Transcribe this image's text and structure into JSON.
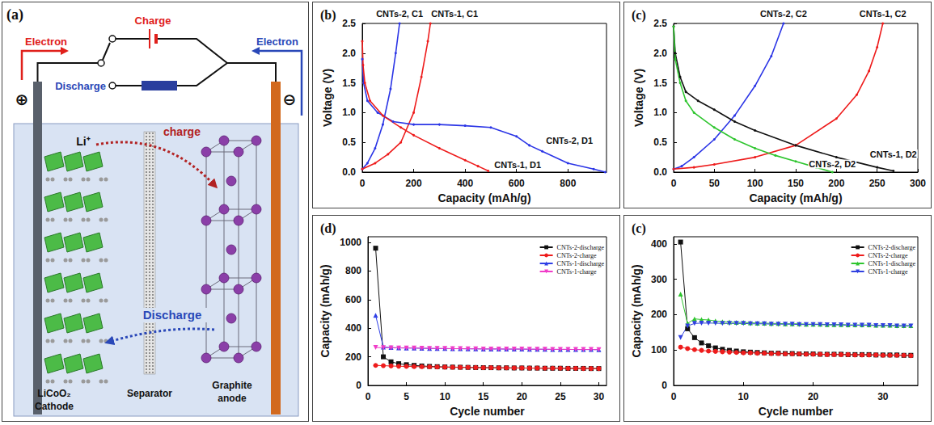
{
  "diagram": {
    "panel": "(a)",
    "electron_charge": "Electron",
    "electron_discharge": "Electron",
    "charge_branch": "Charge",
    "discharge_branch": "Discharge",
    "positive": "⊕",
    "negative": "⊖",
    "ion": "Li⁺",
    "charge_arrow": "charge",
    "discharge_arrow": "Discharge",
    "cathode": [
      "LiCoO₂",
      "Cathode"
    ],
    "separator": "Separator",
    "anode": [
      "Graphite",
      "anode"
    ]
  },
  "chart_data": [
    {
      "type": "line",
      "panel": "(b)",
      "xlabel": "Capacity (mAh/g)",
      "ylabel": "Voltage (V)",
      "xlim": [
        0,
        950
      ],
      "xticks": [
        0,
        200,
        400,
        600,
        800
      ],
      "ylim": [
        0,
        2.5
      ],
      "yticks": [
        {
          "value": 0,
          "label": "0.0"
        },
        0.5,
        {
          "value": 1,
          "label": "1.0"
        },
        1.5,
        {
          "value": 2,
          "label": "2.0"
        },
        2.5
      ],
      "grid": false,
      "marker": "circle",
      "line_style": "solid",
      "series": [
        {
          "name": "CNTs-2, C1",
          "color": "#2b35e6",
          "x": [
            0,
            20,
            50,
            80,
            110,
            130,
            145
          ],
          "values": [
            0.05,
            0.15,
            0.4,
            0.8,
            1.4,
            2.0,
            2.5
          ]
        },
        {
          "name": "CNTs-1, C1",
          "color": "#ee1c1c",
          "x": [
            0,
            50,
            100,
            150,
            200,
            230,
            255,
            265
          ],
          "values": [
            0.05,
            0.15,
            0.3,
            0.5,
            1.0,
            1.6,
            2.2,
            2.5
          ]
        },
        {
          "name": "CNTs-2, D1",
          "color": "#2b35e6",
          "x": [
            0,
            5,
            20,
            60,
            120,
            200,
            300,
            400,
            500,
            600,
            650,
            700,
            800,
            900,
            945
          ],
          "values": [
            1.9,
            1.5,
            1.2,
            1.0,
            0.85,
            0.8,
            0.8,
            0.78,
            0.75,
            0.6,
            0.45,
            0.35,
            0.15,
            0.05,
            0.0
          ]
        },
        {
          "name": "CNTs-1, D1",
          "color": "#ee1c1c",
          "x": [
            0,
            3,
            10,
            30,
            80,
            150,
            200,
            300,
            400,
            450,
            490
          ],
          "values": [
            2.2,
            1.8,
            1.5,
            1.2,
            0.95,
            0.75,
            0.62,
            0.4,
            0.2,
            0.1,
            0.02
          ]
        }
      ]
    },
    {
      "type": "line",
      "panel": "(c)",
      "xlabel": "Capacity (mAh/g)",
      "ylabel": "Voltage (V)",
      "xlim": [
        0,
        300
      ],
      "xticks": [
        0,
        50,
        100,
        150,
        200,
        250,
        300
      ],
      "ylim": [
        0,
        2.5
      ],
      "yticks": [
        {
          "value": 0,
          "label": "0.0"
        },
        0.5,
        {
          "value": 1,
          "label": "1.0"
        },
        1.5,
        {
          "value": 2,
          "label": "2.0"
        },
        2.5
      ],
      "grid": false,
      "marker": "circle",
      "line_style": "solid",
      "series": [
        {
          "name": "CNTs-2, C2",
          "color": "#2b35e6",
          "x": [
            0,
            10,
            25,
            50,
            75,
            100,
            120,
            135
          ],
          "values": [
            0.05,
            0.1,
            0.25,
            0.55,
            0.95,
            1.45,
            1.95,
            2.5
          ]
        },
        {
          "name": "CNTs-1, C2",
          "color": "#ee1c1c",
          "x": [
            0,
            25,
            50,
            100,
            150,
            200,
            225,
            240,
            250,
            257
          ],
          "values": [
            0.05,
            0.08,
            0.13,
            0.25,
            0.45,
            0.9,
            1.3,
            1.7,
            2.1,
            2.5
          ]
        },
        {
          "name": "CNTs-1, D2",
          "color": "#111111",
          "x": [
            0,
            2,
            8,
            15,
            30,
            50,
            75,
            100,
            150,
            200,
            250,
            270
          ],
          "values": [
            2.45,
            2.0,
            1.6,
            1.35,
            1.2,
            1.05,
            0.85,
            0.7,
            0.45,
            0.25,
            0.08,
            0.02
          ]
        },
        {
          "name": "CNTs-2, D2",
          "color": "#2ec52e",
          "x": [
            0,
            2,
            8,
            15,
            25,
            50,
            75,
            100,
            125,
            150,
            175,
            195
          ],
          "values": [
            2.45,
            1.9,
            1.5,
            1.2,
            1.0,
            0.75,
            0.55,
            0.4,
            0.28,
            0.18,
            0.08,
            0.0
          ]
        }
      ]
    },
    {
      "type": "line",
      "panel": "(d)",
      "xlabel": "Cycle number",
      "ylabel": "Capacity (mAh/g)",
      "xlim": [
        0,
        31
      ],
      "xticks": [
        0,
        5,
        10,
        15,
        20,
        25,
        30
      ],
      "ylim": [
        0,
        1040
      ],
      "yticks": [
        0,
        200,
        400,
        600,
        800,
        1000
      ],
      "grid": false,
      "legend": "upper right",
      "line_style": "solid",
      "x": [
        1,
        2,
        3,
        4,
        5,
        6,
        7,
        8,
        9,
        10,
        11,
        12,
        13,
        14,
        15,
        16,
        17,
        18,
        19,
        20,
        21,
        22,
        23,
        24,
        25,
        26,
        27,
        28,
        29,
        30
      ],
      "series": [
        {
          "name": "CNTs-2-discharge",
          "color": "#111111",
          "marker": "square",
          "values": [
            960,
            200,
            165,
            152,
            145,
            140,
            136,
            133,
            131,
            129,
            128,
            127,
            126,
            125,
            124,
            124,
            123,
            123,
            122,
            122,
            121,
            121,
            120,
            120,
            120,
            119,
            119,
            119,
            118,
            118
          ]
        },
        {
          "name": "CNTs-2-charge",
          "color": "#ee1c1c",
          "marker": "circle",
          "values": [
            140,
            138,
            136,
            134,
            133,
            132,
            131,
            130,
            129,
            128,
            127,
            126,
            126,
            125,
            124,
            124,
            123,
            123,
            122,
            122,
            121,
            121,
            120,
            120,
            120,
            119,
            119,
            118,
            118,
            118
          ]
        },
        {
          "name": "CNTs-1-discharge",
          "color": "#2f3fe6",
          "marker": "triangle",
          "values": [
            490,
            268,
            265,
            263,
            262,
            261,
            260,
            259,
            258,
            258,
            257,
            257,
            256,
            256,
            255,
            255,
            255,
            254,
            254,
            254,
            253,
            253,
            253,
            252,
            252,
            252,
            251,
            251,
            251,
            250
          ]
        },
        {
          "name": "CNTs-1-charge",
          "color": "#f03cc8",
          "marker": "triangle-down",
          "values": [
            265,
            264,
            263,
            262,
            262,
            261,
            260,
            259,
            258,
            258,
            257,
            257,
            256,
            256,
            255,
            255,
            255,
            254,
            254,
            254,
            253,
            253,
            253,
            252,
            252,
            252,
            251,
            251,
            251,
            250
          ]
        }
      ]
    },
    {
      "type": "line",
      "panel": "(c)",
      "xlabel": "Cycle number",
      "ylabel": "Capacity (mAh/g)",
      "xlim": [
        0,
        35
      ],
      "xticks": [
        0,
        10,
        20,
        30
      ],
      "ylim": [
        0,
        420
      ],
      "yticks": [
        0,
        100,
        200,
        300,
        400
      ],
      "grid": false,
      "legend": "upper right",
      "line_style": "solid",
      "x": [
        1,
        2,
        3,
        4,
        5,
        6,
        7,
        8,
        9,
        10,
        11,
        12,
        13,
        14,
        15,
        16,
        17,
        18,
        19,
        20,
        21,
        22,
        23,
        24,
        25,
        26,
        27,
        28,
        29,
        30,
        31,
        32,
        33,
        34
      ],
      "series": [
        {
          "name": "CNTs-2-discharge",
          "color": "#111111",
          "marker": "square",
          "values": [
            405,
            160,
            135,
            120,
            112,
            106,
            102,
            99,
            97,
            95,
            94,
            93,
            92,
            91,
            91,
            90,
            90,
            89,
            89,
            89,
            88,
            88,
            88,
            88,
            87,
            87,
            87,
            87,
            86,
            86,
            86,
            86,
            85,
            85
          ]
        },
        {
          "name": "CNTs-2-charge",
          "color": "#ee1c1c",
          "marker": "circle",
          "values": [
            108,
            104,
            101,
            99,
            97,
            96,
            95,
            94,
            93,
            92,
            92,
            91,
            91,
            90,
            90,
            89,
            89,
            89,
            88,
            88,
            88,
            87,
            87,
            87,
            87,
            86,
            86,
            86,
            86,
            85,
            85,
            85,
            85,
            84
          ]
        },
        {
          "name": "CNTs-1-discharge",
          "color": "#2ec52e",
          "marker": "triangle",
          "values": [
            258,
            175,
            188,
            186,
            185,
            182,
            180,
            179,
            178,
            178,
            177,
            176,
            176,
            175,
            175,
            174,
            174,
            174,
            173,
            173,
            173,
            172,
            172,
            172,
            171,
            171,
            171,
            171,
            170,
            170,
            170,
            169,
            169,
            169
          ]
        },
        {
          "name": "CNTs-1-charge",
          "color": "#3040e0",
          "marker": "triangle-down",
          "values": [
            135,
            168,
            175,
            176,
            176,
            176,
            175,
            175,
            175,
            175,
            174,
            174,
            174,
            173,
            173,
            173,
            173,
            172,
            172,
            172,
            172,
            171,
            171,
            171,
            170,
            170,
            170,
            170,
            169,
            169,
            169,
            168,
            168,
            168
          ]
        }
      ]
    }
  ]
}
